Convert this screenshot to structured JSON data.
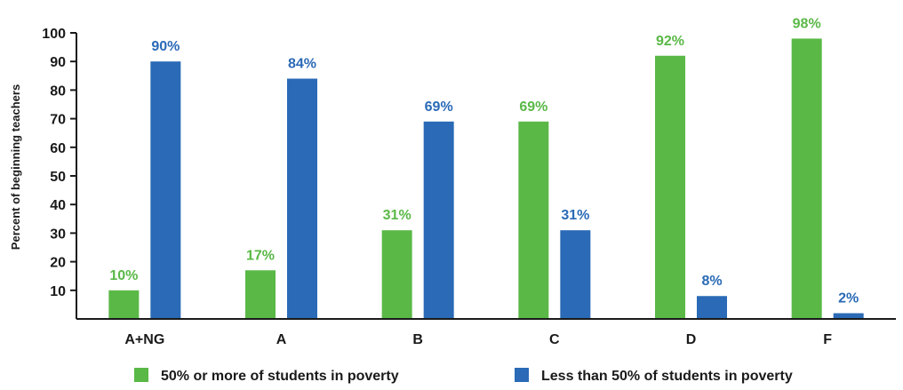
{
  "chart_data": {
    "type": "bar",
    "title": "",
    "xlabel": "",
    "ylabel": "Percent of beginning teachers",
    "ylim": [
      0,
      100
    ],
    "yticks": [
      10,
      20,
      30,
      40,
      50,
      60,
      70,
      80,
      90,
      100
    ],
    "grid": false,
    "legend_position": "bottom",
    "categories": [
      "A+NG",
      "A",
      "B",
      "C",
      "D",
      "F"
    ],
    "series": [
      {
        "name": "50% or more of students in poverty",
        "color": "#5ab847",
        "values": [
          10,
          17,
          31,
          69,
          92,
          98
        ],
        "labels": [
          "10%",
          "17%",
          "31%",
          "69%",
          "92%",
          "98%"
        ]
      },
      {
        "name": "Less than 50% of students in poverty",
        "color": "#2a6ab6",
        "values": [
          90,
          84,
          69,
          31,
          8,
          2
        ],
        "labels": [
          "90%",
          "84%",
          "69%",
          "31%",
          "8%",
          "2%"
        ]
      }
    ]
  }
}
